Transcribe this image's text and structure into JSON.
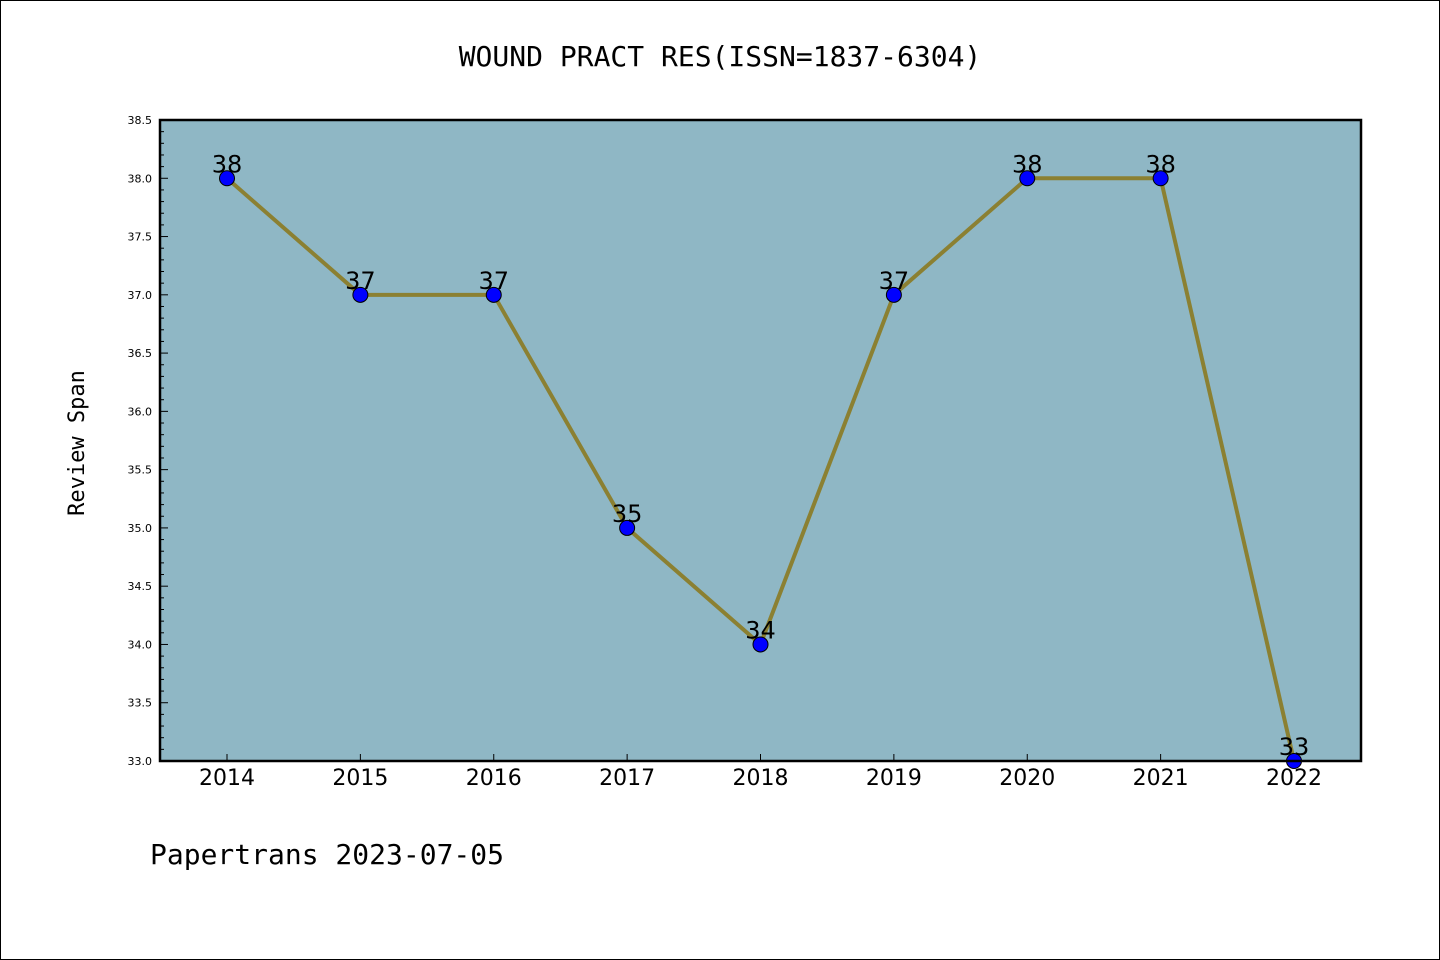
{
  "chart_data": {
    "type": "line",
    "title": "WOUND PRACT RES(ISSN=1837-6304)",
    "xlabel": "",
    "ylabel": "Review Span",
    "categories": [
      "2014",
      "2015",
      "2016",
      "2017",
      "2018",
      "2019",
      "2020",
      "2021",
      "2022"
    ],
    "series": [
      {
        "values": [
          38,
          37,
          37,
          35,
          34,
          37,
          38,
          38,
          33
        ]
      }
    ],
    "data_labels": [
      "38",
      "37",
      "37",
      "35",
      "34",
      "37",
      "38",
      "38",
      "33"
    ],
    "ylim": [
      33.0,
      38.5
    ],
    "yticks": [
      "33.0",
      "33.5",
      "34.0",
      "34.5",
      "35.0",
      "35.5",
      "36.0",
      "36.5",
      "37.0",
      "37.5",
      "38.0",
      "38.5"
    ],
    "grid": false,
    "legend": "none",
    "colors": {
      "plot_background": "#8fb7c5",
      "line": "#8b8032",
      "marker": "#0000ff",
      "axes": "#000000"
    }
  },
  "footer": {
    "text": "Papertrans 2023-07-05"
  }
}
